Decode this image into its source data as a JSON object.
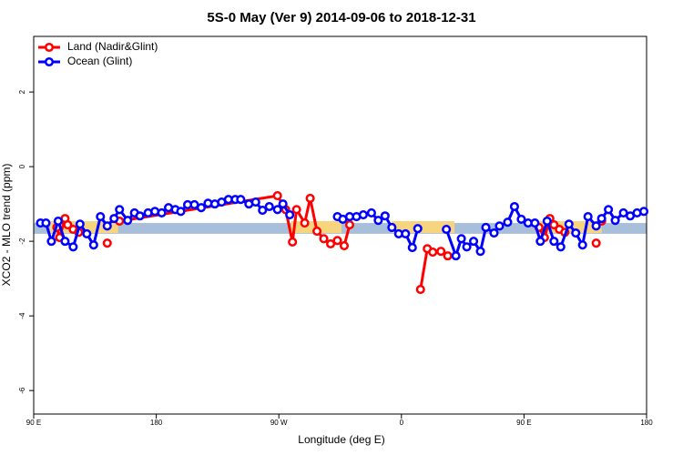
{
  "chart_data": {
    "type": "line",
    "title": "5S-0 May (Ver 9)   2014-09-06 to 2018-12-31",
    "xlabel": "Longitude (deg E)",
    "ylabel": "XCO2 - MLO trend (ppm)",
    "xlim": [
      90,
      540
    ],
    "xticks": [
      {
        "value": 90,
        "label": "90 E"
      },
      180,
      {
        "value": 270,
        "label": "90 W"
      },
      {
        "value": 360,
        "label": "0"
      },
      {
        "value": 450,
        "label": "90 E"
      },
      {
        "value": 540,
        "label": "180"
      }
    ],
    "ylim": [
      -6.63,
      3.49
    ],
    "yticks": [
      -6,
      -4,
      -2,
      0,
      2
    ],
    "legend": "top-left",
    "bands": [
      {
        "color": "#a8bfdc",
        "x": [
          90,
          540
        ],
        "range": [
          -1.8,
          -1.51
        ]
      },
      {
        "color": "#f7d57e",
        "x": [
          102,
          152
        ],
        "range": [
          -1.78,
          -1.46
        ]
      },
      {
        "color": "#f7d57e",
        "x": [
          279,
          316
        ],
        "range": [
          -1.78,
          -1.46
        ]
      },
      {
        "color": "#f7d57e",
        "x": [
          353,
          399
        ],
        "range": [
          -1.78,
          -1.46
        ]
      },
      {
        "color": "#f7d57e",
        "x": [
          460,
          507
        ],
        "range": [
          -1.78,
          -1.46
        ]
      }
    ],
    "series": [
      {
        "name": "Land (Nadir&Glint)",
        "color": "#ff0000",
        "x": [
          107,
          109,
          113,
          115,
          119,
          123,
          134,
          144,
          148,
          153,
          269,
          275,
          280,
          283,
          289,
          293,
          298,
          303,
          308,
          313,
          318,
          322,
          348,
          374,
          379,
          383,
          389,
          394,
          428,
          461,
          465,
          469,
          472,
          476,
          480,
          491,
          503,
          505,
          507
        ],
        "values": [
          -1.63,
          -1.9,
          -1.39,
          -1.56,
          -1.68,
          -1.76,
          null,
          -2.05,
          null,
          -1.46,
          -0.78,
          -1.15,
          -2.02,
          -1.15,
          -1.51,
          -0.85,
          -1.73,
          -1.93,
          -2.07,
          -1.98,
          -2.12,
          -1.56,
          null,
          -3.29,
          -2.2,
          -2.29,
          -2.27,
          -2.39,
          null,
          -1.63,
          -1.9,
          -1.39,
          -1.56,
          -1.68,
          -1.76,
          null,
          -2.05,
          null,
          -1.46
        ]
      },
      {
        "name": "Ocean (Glint)",
        "color": "#0000ff",
        "x": [
          95,
          99,
          103,
          108,
          113,
          119,
          124,
          129,
          134,
          139,
          144,
          149,
          153,
          159,
          164,
          168,
          174,
          179,
          184,
          189,
          194,
          198,
          203,
          208,
          213,
          218,
          223,
          228,
          233,
          238,
          242,
          248,
          253,
          258,
          263,
          269,
          273,
          278,
          295,
          313,
          317,
          322,
          327,
          332,
          338,
          343,
          348,
          353,
          358,
          363,
          368,
          372,
          383,
          393,
          400,
          404,
          408,
          413,
          418,
          422,
          428,
          432,
          438,
          443,
          448,
          453,
          458,
          462,
          467,
          472,
          477,
          483,
          488,
          493,
          497,
          503,
          507,
          512,
          517,
          523,
          528,
          533,
          538
        ],
        "values": [
          -1.51,
          -1.51,
          -2.0,
          -1.46,
          -2.0,
          -2.15,
          -1.54,
          -1.8,
          -2.1,
          -1.34,
          -1.59,
          -1.39,
          -1.15,
          -1.44,
          -1.24,
          -1.32,
          -1.24,
          -1.2,
          -1.24,
          -1.1,
          -1.15,
          -1.2,
          -1.02,
          -1.02,
          -1.1,
          -0.98,
          -1.0,
          -0.95,
          -0.88,
          -0.88,
          -0.88,
          -1.0,
          -0.95,
          -1.17,
          -1.07,
          -1.15,
          -1.0,
          -1.29,
          null,
          -1.34,
          -1.41,
          -1.34,
          -1.34,
          -1.29,
          -1.24,
          -1.44,
          -1.32,
          -1.63,
          -1.8,
          -1.8,
          -2.17,
          -1.66,
          null,
          -1.68,
          -2.39,
          -1.93,
          -2.15,
          -2.0,
          -2.27,
          -1.63,
          -1.78,
          -1.59,
          -1.49,
          -1.07,
          -1.41,
          -1.51,
          -1.51,
          -2.0,
          -1.46,
          -2.0,
          -2.15,
          -1.54,
          -1.78,
          -2.1,
          -1.34,
          -1.59,
          -1.39,
          -1.15,
          -1.44,
          -1.24,
          -1.32,
          -1.24,
          -1.2
        ]
      }
    ]
  }
}
